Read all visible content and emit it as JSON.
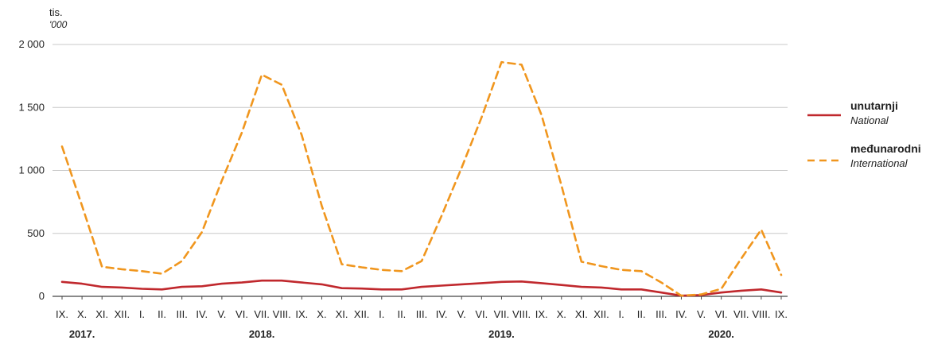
{
  "chart_data": {
    "type": "line",
    "unit_label": "tis.",
    "unit_label_en": "'000",
    "y_ticks": [
      "0",
      "500",
      "1 000",
      "1 500",
      "2 000"
    ],
    "ylim": [
      0,
      2000
    ],
    "grid": true,
    "legend_position": "right",
    "categories": [
      "IX.",
      "X.",
      "XI.",
      "XII.",
      "I.",
      "II.",
      "III.",
      "IV.",
      "V.",
      "VI.",
      "VII.",
      "VIII.",
      "IX.",
      "X.",
      "XI.",
      "XII.",
      "I.",
      "II.",
      "III.",
      "IV.",
      "V.",
      "VI.",
      "VII.",
      "VIII.",
      "IX.",
      "X.",
      "XI.",
      "XII.",
      "I.",
      "II.",
      "III.",
      "IV.",
      "V.",
      "VI.",
      "VII.",
      "VIII.",
      "IX."
    ],
    "years": [
      {
        "label": "2017.",
        "category_index": 1
      },
      {
        "label": "2018.",
        "category_index": 10
      },
      {
        "label": "2019.",
        "category_index": 22
      },
      {
        "label": "2020.",
        "category_index": 33
      }
    ],
    "series": [
      {
        "name": "unutarnji",
        "name_en": "National",
        "color": "#c0282d",
        "dash": "solid",
        "values": [
          115,
          100,
          75,
          70,
          60,
          55,
          75,
          80,
          100,
          110,
          125,
          125,
          110,
          95,
          65,
          62,
          55,
          55,
          75,
          85,
          95,
          105,
          115,
          118,
          105,
          90,
          75,
          70,
          55,
          55,
          30,
          5,
          10,
          30,
          45,
          55,
          30
        ]
      },
      {
        "name": "međunarodni",
        "name_en": "International",
        "color": "#f0961e",
        "dash": "dashed",
        "values": [
          1190,
          720,
          235,
          215,
          200,
          180,
          280,
          510,
          920,
          1300,
          1760,
          1680,
          1280,
          720,
          255,
          230,
          210,
          200,
          280,
          640,
          1020,
          1420,
          1860,
          1840,
          1440,
          880,
          275,
          240,
          210,
          200,
          110,
          5,
          15,
          60,
          300,
          530,
          170
        ]
      }
    ]
  }
}
